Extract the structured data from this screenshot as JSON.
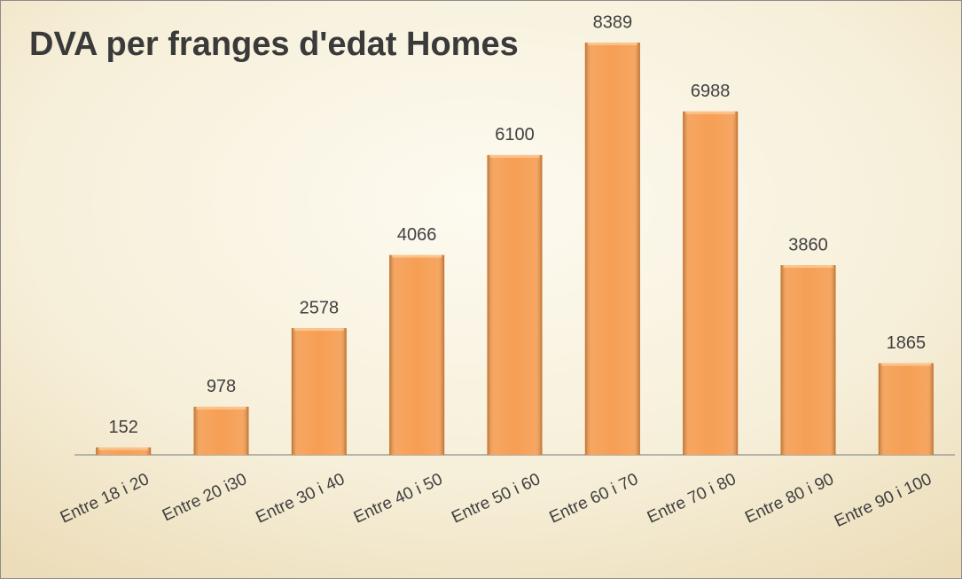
{
  "chart_data": {
    "type": "bar",
    "title": "DVA per franges d'edat Homes",
    "categories": [
      "Entre 18 i 20",
      "Entre 20 i30",
      "Entre 30 i 40",
      "Entre 40 i 50",
      "Entre 50 i 60",
      "Entre 60 i 70",
      "Entre 70 i 80",
      "Entre 80 i 90",
      "Entre 90 i 100"
    ],
    "values": [
      152,
      978,
      2578,
      4066,
      6100,
      8389,
      6988,
      3860,
      1865
    ],
    "color": "#f59a4c"
  }
}
